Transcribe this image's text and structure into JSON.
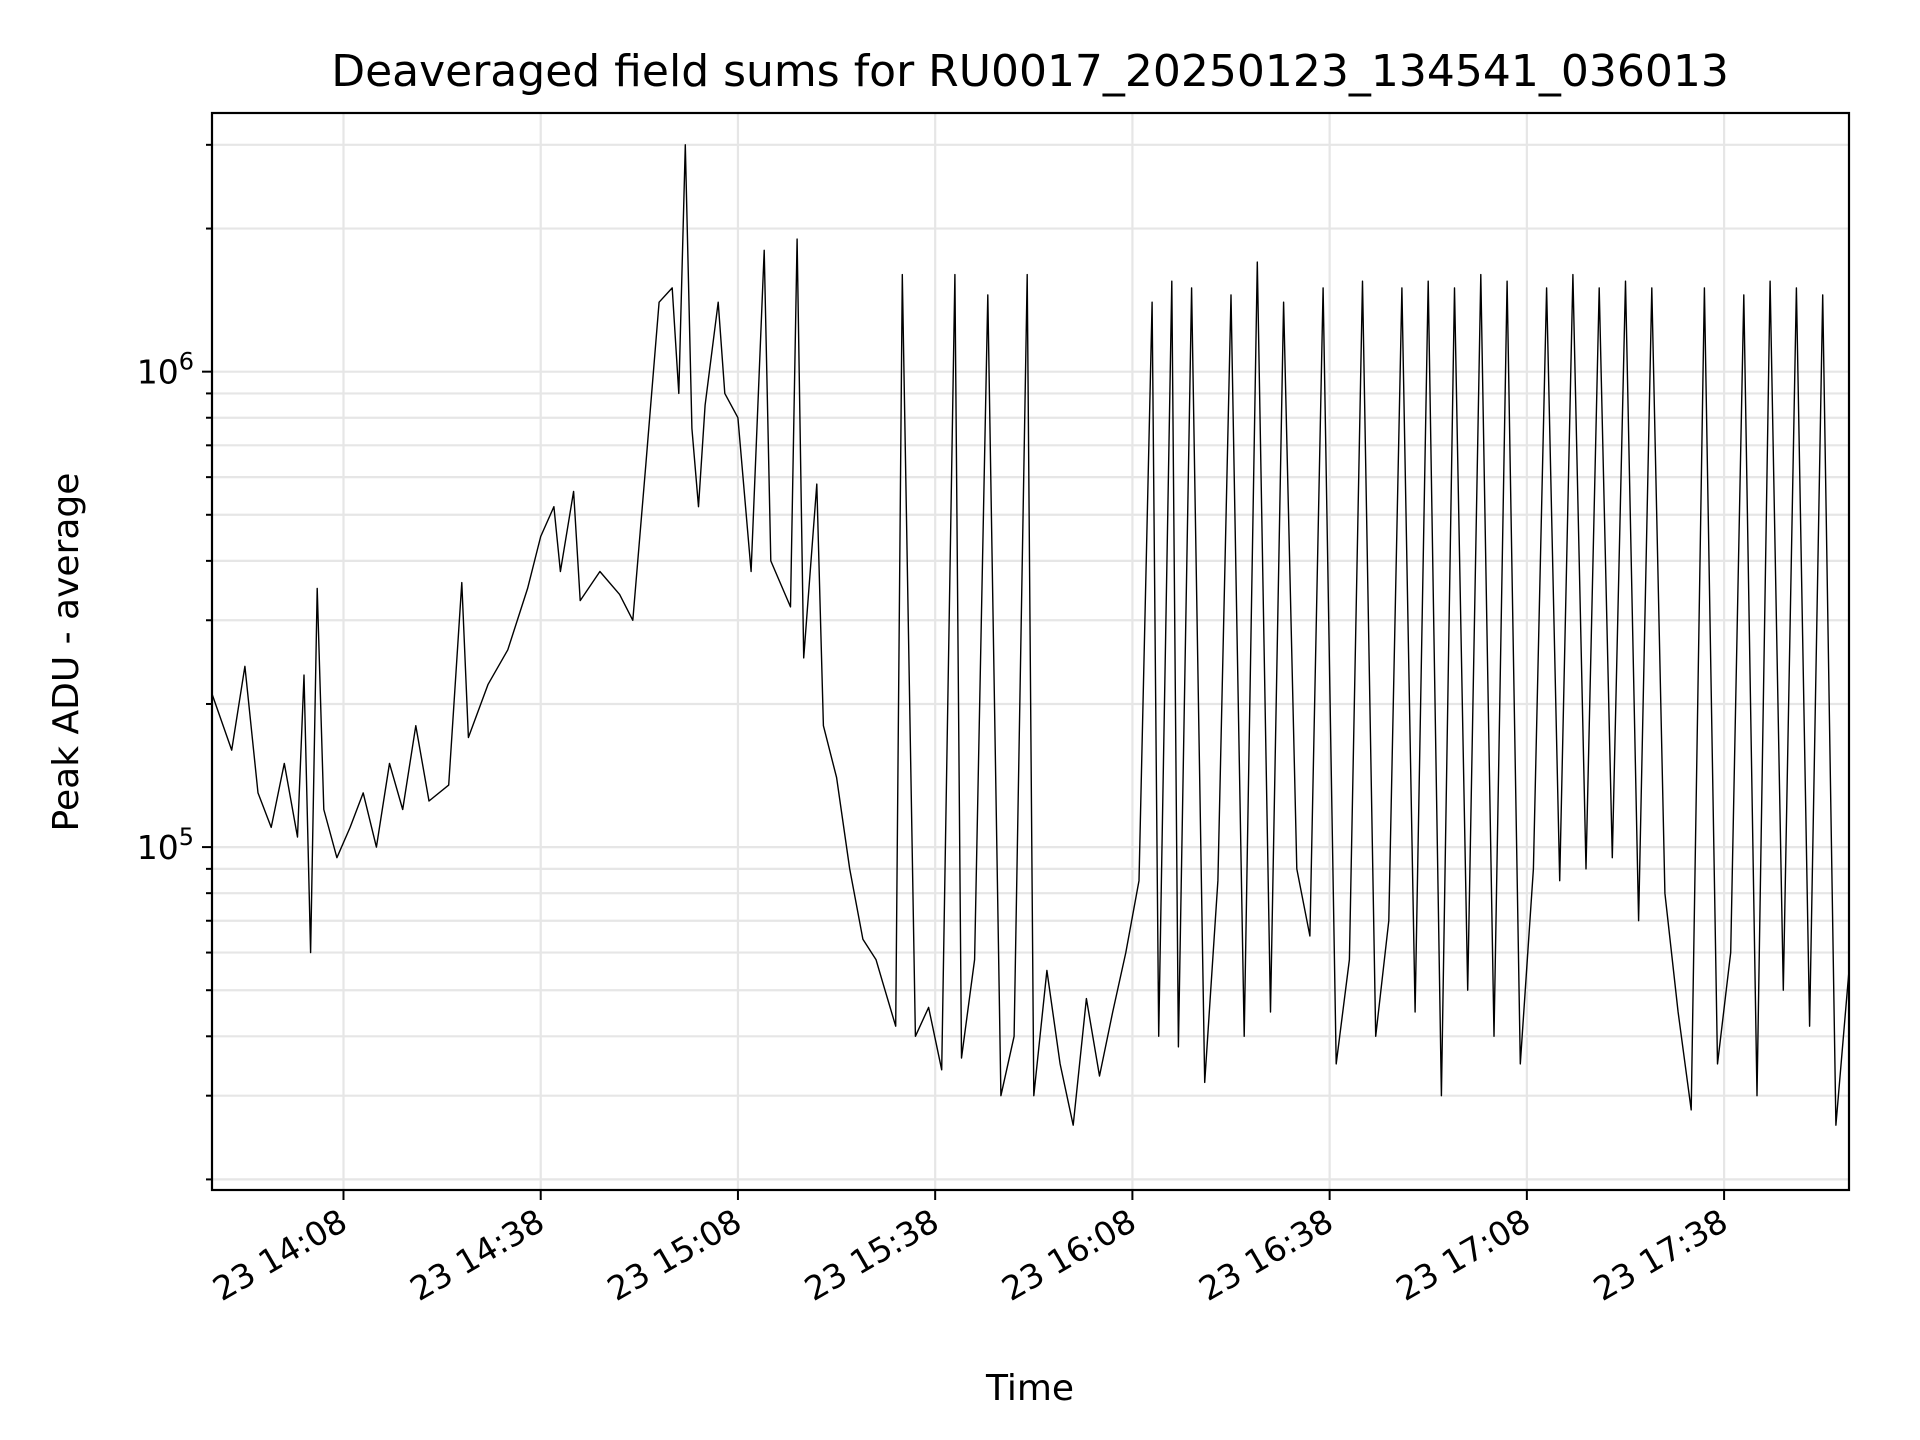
{
  "chart_data": {
    "type": "line",
    "title": "Deaveraged field sums for RU0017_20250123_134541_036013",
    "xlabel": "Time",
    "ylabel": "Peak ADU - average",
    "yscale": "log",
    "ylim": [
      19000,
      3500000
    ],
    "xlim": [
      "23 13:48",
      "23 17:57"
    ],
    "grid": true,
    "x_ticks": [
      "23 14:08",
      "23 14:38",
      "23 15:08",
      "23 15:38",
      "23 16:08",
      "23 16:38",
      "23 17:08",
      "23 17:38"
    ],
    "y_ticks": [
      {
        "value": 100000,
        "base": "10",
        "exp": "5"
      },
      {
        "value": 1000000,
        "base": "10",
        "exp": "6"
      }
    ],
    "series": [
      {
        "color": "#000000",
        "points": [
          [
            "23 13:48",
            210000
          ],
          [
            "23 13:51",
            160000
          ],
          [
            "23 13:53",
            240000
          ],
          [
            "23 13:55",
            130000
          ],
          [
            "23 13:57",
            110000
          ],
          [
            "23 13:59",
            150000
          ],
          [
            "23 14:01",
            105000
          ],
          [
            "23 14:02",
            230000
          ],
          [
            "23 14:03",
            60000
          ],
          [
            "23 14:04",
            350000
          ],
          [
            "23 14:05",
            120000
          ],
          [
            "23 14:07",
            95000
          ],
          [
            "23 14:09",
            110000
          ],
          [
            "23 14:11",
            130000
          ],
          [
            "23 14:13",
            100000
          ],
          [
            "23 14:15",
            150000
          ],
          [
            "23 14:17",
            120000
          ],
          [
            "23 14:19",
            180000
          ],
          [
            "23 14:21",
            125000
          ],
          [
            "23 14:24",
            135000
          ],
          [
            "23 14:26",
            360000
          ],
          [
            "23 14:27",
            170000
          ],
          [
            "23 14:30",
            220000
          ],
          [
            "23 14:33",
            260000
          ],
          [
            "23 14:36",
            350000
          ],
          [
            "23 14:38",
            450000
          ],
          [
            "23 14:40",
            520000
          ],
          [
            "23 14:41",
            380000
          ],
          [
            "23 14:43",
            560000
          ],
          [
            "23 14:44",
            330000
          ],
          [
            "23 14:47",
            380000
          ],
          [
            "23 14:50",
            340000
          ],
          [
            "23 14:52",
            300000
          ],
          [
            "23 14:54",
            640000
          ],
          [
            "23 14:56",
            1400000
          ],
          [
            "23 14:58",
            1500000
          ],
          [
            "23 14:59",
            900000
          ],
          [
            "23 15:00",
            3000000
          ],
          [
            "23 15:01",
            760000
          ],
          [
            "23 15:02",
            520000
          ],
          [
            "23 15:03",
            850000
          ],
          [
            "23 15:05",
            1400000
          ],
          [
            "23 15:06",
            900000
          ],
          [
            "23 15:08",
            800000
          ],
          [
            "23 15:10",
            380000
          ],
          [
            "23 15:12",
            1800000
          ],
          [
            "23 15:13",
            400000
          ],
          [
            "23 15:16",
            320000
          ],
          [
            "23 15:17",
            1900000
          ],
          [
            "23 15:18",
            250000
          ],
          [
            "23 15:20",
            580000
          ],
          [
            "23 15:21",
            180000
          ],
          [
            "23 15:23",
            140000
          ],
          [
            "23 15:25",
            90000
          ],
          [
            "23 15:27",
            64000
          ],
          [
            "23 15:29",
            58000
          ],
          [
            "23 15:30",
            52000
          ],
          [
            "23 15:32",
            42000
          ],
          [
            "23 15:33",
            1600000
          ],
          [
            "23 15:35",
            40000
          ],
          [
            "23 15:37",
            46000
          ],
          [
            "23 15:39",
            34000
          ],
          [
            "23 15:41",
            1600000
          ],
          [
            "23 15:42",
            36000
          ],
          [
            "23 15:44",
            58000
          ],
          [
            "23 15:46",
            1450000
          ],
          [
            "23 15:48",
            30000
          ],
          [
            "23 15:50",
            40000
          ],
          [
            "23 15:52",
            1600000
          ],
          [
            "23 15:53",
            30000
          ],
          [
            "23 15:55",
            55000
          ],
          [
            "23 15:57",
            35000
          ],
          [
            "23 15:59",
            26000
          ],
          [
            "23 16:01",
            48000
          ],
          [
            "23 16:03",
            33000
          ],
          [
            "23 16:05",
            45000
          ],
          [
            "23 16:07",
            60000
          ],
          [
            "23 16:09",
            85000
          ],
          [
            "23 16:11",
            1400000
          ],
          [
            "23 16:12",
            40000
          ],
          [
            "23 16:14",
            1550000
          ],
          [
            "23 16:15",
            38000
          ],
          [
            "23 16:17",
            1500000
          ],
          [
            "23 16:19",
            32000
          ],
          [
            "23 16:21",
            85000
          ],
          [
            "23 16:23",
            1450000
          ],
          [
            "23 16:25",
            40000
          ],
          [
            "23 16:27",
            1700000
          ],
          [
            "23 16:29",
            45000
          ],
          [
            "23 16:31",
            1400000
          ],
          [
            "23 16:33",
            90000
          ],
          [
            "23 16:35",
            65000
          ],
          [
            "23 16:37",
            1500000
          ],
          [
            "23 16:39",
            35000
          ],
          [
            "23 16:41",
            58000
          ],
          [
            "23 16:43",
            1550000
          ],
          [
            "23 16:45",
            40000
          ],
          [
            "23 16:47",
            70000
          ],
          [
            "23 16:49",
            1500000
          ],
          [
            "23 16:51",
            45000
          ],
          [
            "23 16:53",
            1550000
          ],
          [
            "23 16:55",
            30000
          ],
          [
            "23 16:57",
            1500000
          ],
          [
            "23 16:59",
            50000
          ],
          [
            "23 17:01",
            1600000
          ],
          [
            "23 17:03",
            40000
          ],
          [
            "23 17:05",
            1550000
          ],
          [
            "23 17:07",
            35000
          ],
          [
            "23 17:09",
            90000
          ],
          [
            "23 17:11",
            1500000
          ],
          [
            "23 17:13",
            85000
          ],
          [
            "23 17:15",
            1600000
          ],
          [
            "23 17:17",
            90000
          ],
          [
            "23 17:19",
            1500000
          ],
          [
            "23 17:21",
            95000
          ],
          [
            "23 17:23",
            1550000
          ],
          [
            "23 17:25",
            70000
          ],
          [
            "23 17:27",
            1500000
          ],
          [
            "23 17:29",
            80000
          ],
          [
            "23 17:31",
            45000
          ],
          [
            "23 17:33",
            28000
          ],
          [
            "23 17:35",
            1500000
          ],
          [
            "23 17:37",
            35000
          ],
          [
            "23 17:39",
            60000
          ],
          [
            "23 17:41",
            1450000
          ],
          [
            "23 17:43",
            30000
          ],
          [
            "23 17:45",
            1550000
          ],
          [
            "23 17:47",
            50000
          ],
          [
            "23 17:49",
            1500000
          ],
          [
            "23 17:51",
            42000
          ],
          [
            "23 17:53",
            1450000
          ],
          [
            "23 17:55",
            26000
          ],
          [
            "23 17:57",
            55000
          ]
        ]
      }
    ]
  }
}
